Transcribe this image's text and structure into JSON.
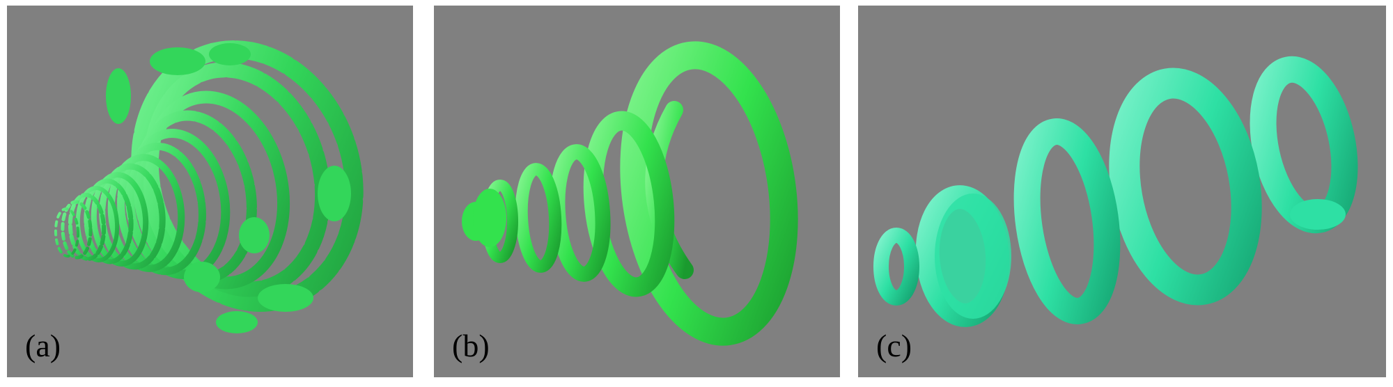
{
  "panels": [
    {
      "label": "(a)",
      "surface_color": "#33d65a",
      "surface_highlight": "#7bf598",
      "surface_shadow": "#1e9b3c"
    },
    {
      "label": "(b)",
      "surface_color": "#33e24d",
      "surface_highlight": "#86f592",
      "surface_shadow": "#1a9a2e"
    },
    {
      "label": "(c)",
      "surface_color": "#2ee0a4",
      "surface_highlight": "#7df2cb",
      "surface_shadow": "#16a673"
    }
  ],
  "background_color": "#808080"
}
